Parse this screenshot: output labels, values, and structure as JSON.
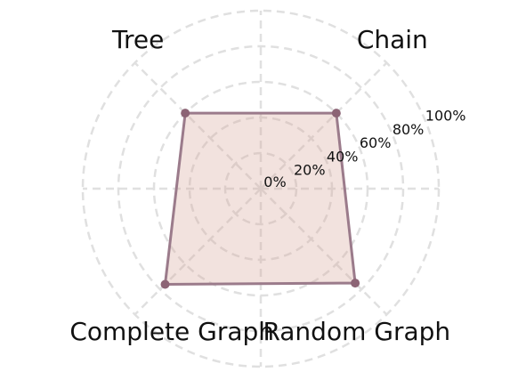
{
  "chart_data": {
    "type": "radar",
    "categories": [
      "Chain",
      "Tree",
      "Complete Graph",
      "Random Graph"
    ],
    "values": [
      60,
      60,
      76,
      75
    ],
    "rlim": [
      0,
      100
    ],
    "r_ticks": [
      0,
      20,
      40,
      60,
      80,
      100
    ],
    "r_tick_labels": [
      "0%",
      "20%",
      "40%",
      "60%",
      "80%",
      "100%"
    ],
    "grid": true,
    "colors": {
      "fill": "#d9a79a",
      "line": "#9b7b8b",
      "point": "#8c6475",
      "grid": "#e0e0e0"
    }
  }
}
